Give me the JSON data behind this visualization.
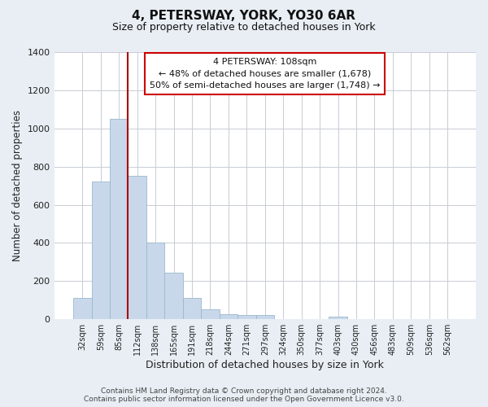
{
  "title": "4, PETERSWAY, YORK, YO30 6AR",
  "subtitle": "Size of property relative to detached houses in York",
  "xlabel": "Distribution of detached houses by size in York",
  "ylabel": "Number of detached properties",
  "bar_labels": [
    "32sqm",
    "59sqm",
    "85sqm",
    "112sqm",
    "138sqm",
    "165sqm",
    "191sqm",
    "218sqm",
    "244sqm",
    "271sqm",
    "297sqm",
    "324sqm",
    "350sqm",
    "377sqm",
    "403sqm",
    "430sqm",
    "456sqm",
    "483sqm",
    "509sqm",
    "536sqm",
    "562sqm"
  ],
  "bar_values": [
    110,
    720,
    1050,
    750,
    400,
    245,
    110,
    50,
    28,
    22,
    22,
    0,
    0,
    0,
    15,
    0,
    0,
    0,
    0,
    0,
    0
  ],
  "bar_color": "#c8d8ea",
  "bar_edge_color": "#9ab8cc",
  "property_line_color": "#aa0000",
  "annotation_box_text": "4 PETERSWAY: 108sqm\n← 48% of detached houses are smaller (1,678)\n50% of semi-detached houses are larger (1,748) →",
  "ylim": [
    0,
    1400
  ],
  "yticks": [
    0,
    200,
    400,
    600,
    800,
    1000,
    1200,
    1400
  ],
  "footer_text": "Contains HM Land Registry data © Crown copyright and database right 2024.\nContains public sector information licensed under the Open Government Licence v3.0.",
  "box_facecolor": "#ffffff",
  "box_edgecolor": "#cc0000",
  "plot_bg": "#ffffff",
  "fig_bg": "#e8eef4",
  "grid_color": "#c8ccd4",
  "title_fontsize": 11,
  "subtitle_fontsize": 9
}
